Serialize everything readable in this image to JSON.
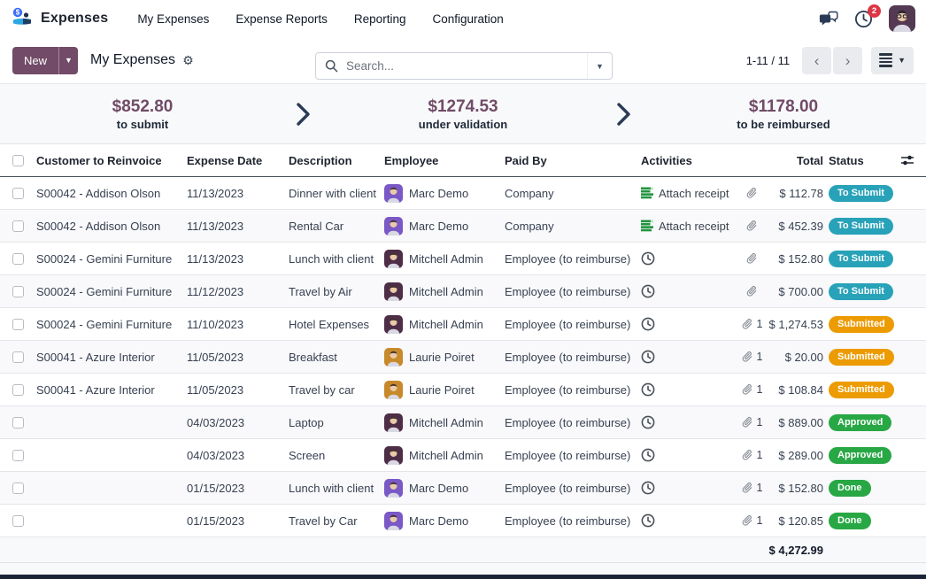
{
  "navbar": {
    "app_name": "Expenses",
    "menus": [
      {
        "label": "My Expenses"
      },
      {
        "label": "Expense Reports"
      },
      {
        "label": "Reporting"
      },
      {
        "label": "Configuration"
      }
    ],
    "activity_badge": "2"
  },
  "control": {
    "new_label": "New",
    "breadcrumb": "My Expenses",
    "search_placeholder": "Search...",
    "pager": "1-11 / 11"
  },
  "kpis": [
    {
      "amount": "$852.80",
      "label": "to submit"
    },
    {
      "amount": "$1274.53",
      "label": "under validation"
    },
    {
      "amount": "$1178.00",
      "label": "to be reimbursed"
    }
  ],
  "table": {
    "columns": [
      "Customer to Reinvoice",
      "Expense Date",
      "Description",
      "Employee",
      "Paid By",
      "Activities",
      "Total",
      "Status"
    ],
    "rows": [
      {
        "customer": "S00042 - Addison Olson",
        "date": "11/13/2023",
        "description": "Dinner with client",
        "employee": "Marc Demo",
        "avatar_bg": "#7a58c6",
        "paid_by": "Company",
        "activity": "attach_receipt",
        "activity_label": "Attach receipt",
        "attach_count": "",
        "total": "$ 112.78",
        "status": "To Submit",
        "status_type": "to-submit"
      },
      {
        "customer": "S00042 - Addison Olson",
        "date": "11/13/2023",
        "description": "Rental Car",
        "employee": "Marc Demo",
        "avatar_bg": "#7a58c6",
        "paid_by": "Company",
        "activity": "attach_receipt",
        "activity_label": "Attach receipt",
        "attach_count": "",
        "total": "$ 452.39",
        "status": "To Submit",
        "status_type": "to-submit"
      },
      {
        "customer": "S00024 - Gemini Furniture",
        "date": "11/13/2023",
        "description": "Lunch with client",
        "employee": "Mitchell Admin",
        "avatar_bg": "#4e2e47",
        "paid_by": "Employee (to reimburse)",
        "activity": "clock",
        "activity_label": "",
        "attach_count": "",
        "total": "$ 152.80",
        "status": "To Submit",
        "status_type": "to-submit"
      },
      {
        "customer": "S00024 - Gemini Furniture",
        "date": "11/12/2023",
        "description": "Travel by Air",
        "employee": "Mitchell Admin",
        "avatar_bg": "#4e2e47",
        "paid_by": "Employee (to reimburse)",
        "activity": "clock",
        "activity_label": "",
        "attach_count": "",
        "total": "$ 700.00",
        "status": "To Submit",
        "status_type": "to-submit"
      },
      {
        "customer": "S00024 - Gemini Furniture",
        "date": "11/10/2023",
        "description": "Hotel Expenses",
        "employee": "Mitchell Admin",
        "avatar_bg": "#4e2e47",
        "paid_by": "Employee (to reimburse)",
        "activity": "clock",
        "activity_label": "",
        "attach_count": "1",
        "total": "$ 1,274.53",
        "status": "Submitted",
        "status_type": "submitted"
      },
      {
        "customer": "S00041 - Azure Interior",
        "date": "11/05/2023",
        "description": "Breakfast",
        "employee": "Laurie Poiret",
        "avatar_bg": "#c8892b",
        "paid_by": "Employee (to reimburse)",
        "activity": "clock",
        "activity_label": "",
        "attach_count": "1",
        "total": "$ 20.00",
        "status": "Submitted",
        "status_type": "submitted"
      },
      {
        "customer": "S00041 - Azure Interior",
        "date": "11/05/2023",
        "description": "Travel by car",
        "employee": "Laurie Poiret",
        "avatar_bg": "#c8892b",
        "paid_by": "Employee (to reimburse)",
        "activity": "clock",
        "activity_label": "",
        "attach_count": "1",
        "total": "$ 108.84",
        "status": "Submitted",
        "status_type": "submitted"
      },
      {
        "customer": "",
        "date": "04/03/2023",
        "description": "Laptop",
        "employee": "Mitchell Admin",
        "avatar_bg": "#4e2e47",
        "paid_by": "Employee (to reimburse)",
        "activity": "clock",
        "activity_label": "",
        "attach_count": "1",
        "total": "$ 889.00",
        "status": "Approved",
        "status_type": "approved"
      },
      {
        "customer": "",
        "date": "04/03/2023",
        "description": "Screen",
        "employee": "Mitchell Admin",
        "avatar_bg": "#4e2e47",
        "paid_by": "Employee (to reimburse)",
        "activity": "clock",
        "activity_label": "",
        "attach_count": "1",
        "total": "$ 289.00",
        "status": "Approved",
        "status_type": "approved"
      },
      {
        "customer": "",
        "date": "01/15/2023",
        "description": "Lunch with client",
        "employee": "Marc Demo",
        "avatar_bg": "#7a58c6",
        "paid_by": "Employee (to reimburse)",
        "activity": "clock",
        "activity_label": "",
        "attach_count": "1",
        "total": "$ 152.80",
        "status": "Done",
        "status_type": "done"
      },
      {
        "customer": "",
        "date": "01/15/2023",
        "description": "Travel by Car",
        "employee": "Marc Demo",
        "avatar_bg": "#7a58c6",
        "paid_by": "Employee (to reimburse)",
        "activity": "clock",
        "activity_label": "",
        "attach_count": "1",
        "total": "$ 120.85",
        "status": "Done",
        "status_type": "done"
      }
    ],
    "footer_total": "$ 4,272.99"
  },
  "colors": {
    "brand": "#714B67",
    "status": {
      "to-submit": "#28a2b8",
      "submitted": "#ec9b03",
      "approved": "#28a745",
      "done": "#28a745"
    },
    "badge_red": "#dc3545",
    "activity_green": "#21953f"
  }
}
